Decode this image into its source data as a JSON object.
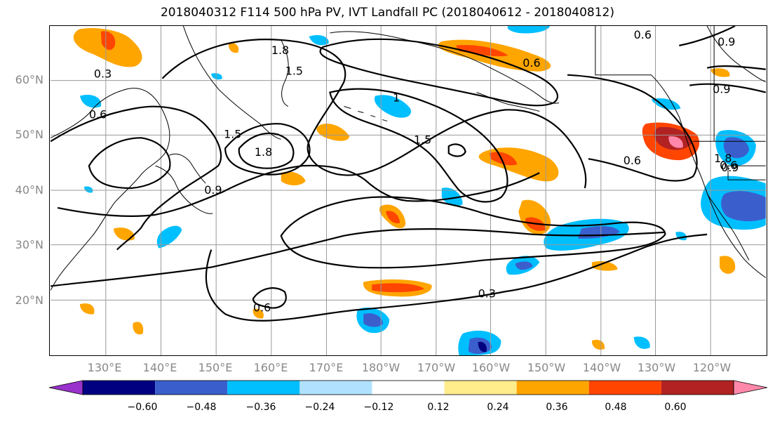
{
  "title": "2018040312 F114 500 hPa PV, IVT Landfall PC (2018040612 - 2018040812)",
  "lat_labels": [
    "60°N",
    "50°N",
    "40°N",
    "30°N",
    "20°N"
  ],
  "lon_labels": [
    "130°E",
    "140°E",
    "150°E",
    "160°E",
    "170°E",
    "180°W",
    "170°W",
    "160°W",
    "150°W",
    "140°W",
    "130°W",
    "120°W"
  ],
  "contour_labels": [
    "0.3",
    "0.6",
    "0.9",
    "1.5",
    "1.8",
    "1.8",
    "1.5",
    "1.5",
    "1",
    "0.6",
    "0.6",
    "0.9",
    "0.9",
    "0.6",
    "0.3",
    "0.6",
    "1.8",
    "0.9",
    "0.6"
  ],
  "colorbar": {
    "tick_labels": [
      "−0.60",
      "−0.48",
      "−0.36",
      "−0.24",
      "−0.12",
      "0.12",
      "0.24",
      "0.36",
      "0.48",
      "0.60"
    ],
    "colors": [
      "#9932cc",
      "#000080",
      "#3a5fcd",
      "#00bfff",
      "#b0e2ff",
      "#ffffff",
      "#ffec8b",
      "#ffa500",
      "#ff4500",
      "#b22222",
      "#ff88aa"
    ]
  }
}
